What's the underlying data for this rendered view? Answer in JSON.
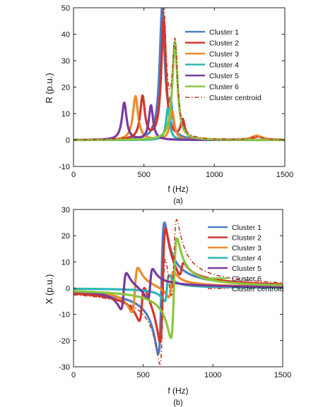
{
  "chart_data": [
    {
      "type": "line",
      "panel_label": "(a)",
      "xlabel": "f (Hz)",
      "ylabel": "R (p.u.)",
      "xlim": [
        0,
        1500
      ],
      "ylim": [
        -10,
        50
      ],
      "xticks": [
        0,
        500,
        1000,
        1500
      ],
      "yticks": [
        -10,
        0,
        10,
        20,
        30,
        40,
        50
      ],
      "grid": false,
      "legend_position": "top-right",
      "series": [
        {
          "name": "Cluster 1",
          "color": "#4a7fc8",
          "style": "solid",
          "resonances": [
            {
              "f": 630,
              "peak": 50,
              "width": 22
            },
            {
              "f": 690,
              "peak": 10,
              "width": 14
            }
          ]
        },
        {
          "name": "Cluster 2",
          "color": "#d4372f",
          "style": "solid",
          "resonances": [
            {
              "f": 490,
              "peak": 16,
              "width": 20
            },
            {
              "f": 640,
              "peak": 45,
              "width": 20
            },
            {
              "f": 775,
              "peak": 7,
              "width": 18
            },
            {
              "f": 1310,
              "peak": 1.3,
              "width": 45
            }
          ]
        },
        {
          "name": "Cluster 3",
          "color": "#ef8a2c",
          "style": "solid",
          "resonances": [
            {
              "f": 440,
              "peak": 16.5,
              "width": 22
            },
            {
              "f": 700,
              "peak": 11,
              "width": 18
            },
            {
              "f": 1300,
              "peak": 1.6,
              "width": 45
            }
          ]
        },
        {
          "name": "Cluster 4",
          "color": "#2fb6b6",
          "style": "solid",
          "resonances": [
            {
              "f": 670,
              "peak": 12,
              "width": 16
            }
          ]
        },
        {
          "name": "Cluster 5",
          "color": "#7a3a9e",
          "style": "solid",
          "resonances": [
            {
              "f": 360,
              "peak": 14,
              "width": 20
            },
            {
              "f": 550,
              "peak": 13,
              "width": 18
            }
          ]
        },
        {
          "name": "Cluster 6",
          "color": "#8cc63f",
          "style": "solid",
          "resonances": [
            {
              "f": 720,
              "peak": 37,
              "width": 22
            }
          ]
        },
        {
          "name": "Cluster centroid",
          "color": "#c0392b",
          "style": "dashdot",
          "resonances": [
            {
              "f": 640,
              "peak": 48,
              "width": 22
            },
            {
              "f": 490,
              "peak": 15,
              "width": 20
            },
            {
              "f": 720,
              "peak": 35,
              "width": 22
            },
            {
              "f": 1300,
              "peak": 1.2,
              "width": 45
            }
          ]
        }
      ]
    },
    {
      "type": "line",
      "panel_label": "(b)",
      "xlabel": "f (Hz)",
      "ylabel": "X (p.u.)",
      "xlim": [
        0,
        1500
      ],
      "ylim": [
        -30,
        30
      ],
      "xticks": [
        0,
        500,
        1000,
        1500
      ],
      "yticks": [
        -30,
        -20,
        -10,
        0,
        10,
        20,
        30
      ],
      "grid": false,
      "legend_position": "top-right",
      "series": [
        {
          "name": "Cluster 1",
          "color": "#4a7fc8",
          "style": "solid",
          "resonances": [
            {
              "f": 630,
              "amp": 25,
              "width": 22
            }
          ]
        },
        {
          "name": "Cluster 2",
          "color": "#d4372f",
          "style": "solid",
          "resonances": [
            {
              "f": 490,
              "amp": 7,
              "width": 20
            },
            {
              "f": 640,
              "amp": 22,
              "width": 20
            },
            {
              "f": 775,
              "amp": 3,
              "width": 18
            }
          ]
        },
        {
          "name": "Cluster 3",
          "color": "#ef8a2c",
          "style": "solid",
          "resonances": [
            {
              "f": 440,
              "amp": 8.5,
              "width": 22
            },
            {
              "f": 700,
              "amp": 5,
              "width": 18
            }
          ]
        },
        {
          "name": "Cluster 4",
          "color": "#2fb6b6",
          "style": "solid",
          "resonances": [
            {
              "f": 670,
              "amp": 5,
              "width": 16
            }
          ]
        },
        {
          "name": "Cluster 5",
          "color": "#7a3a9e",
          "style": "solid",
          "resonances": [
            {
              "f": 360,
              "amp": 7,
              "width": 20
            },
            {
              "f": 550,
              "amp": 6,
              "width": 18
            }
          ]
        },
        {
          "name": "Cluster 6",
          "color": "#8cc63f",
          "style": "solid",
          "resonances": [
            {
              "f": 720,
              "amp": 19,
              "width": 22
            }
          ]
        },
        {
          "name": "Cluster centroid",
          "color": "#c0392b",
          "style": "dashdot",
          "resonances": [
            {
              "f": 640,
              "amp": 22,
              "width": 22
            },
            {
              "f": 720,
              "amp": 17,
              "width": 22
            }
          ]
        }
      ]
    }
  ]
}
